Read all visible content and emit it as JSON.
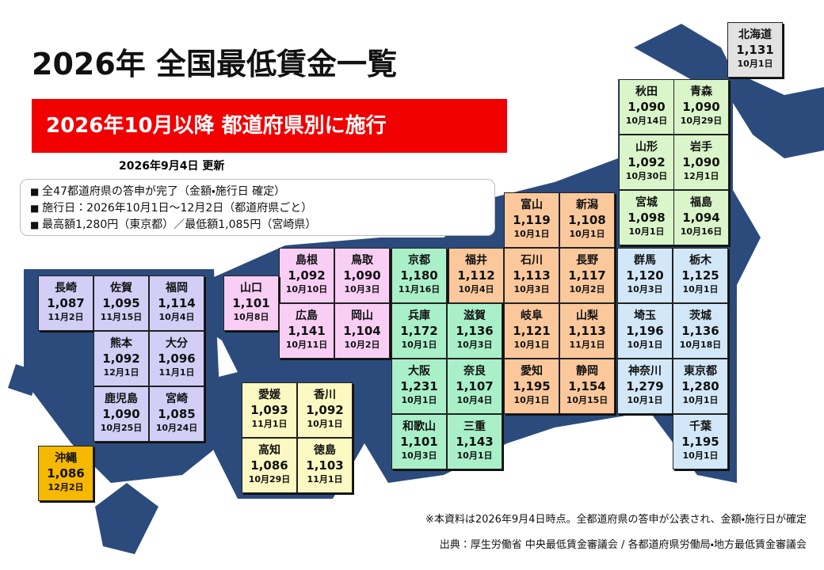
{
  "header": {
    "title": "2026年 全国最低賃金一覧",
    "banner": "2026年10月以降 都道府県別に施行",
    "updated": "2026年9月4日 更新"
  },
  "bullets": [
    "全47都道府県の答申が完了（金額・施行日 確定）",
    "施行日：2026年10月1日〜12月2日（都道府県ごと）",
    "最高額1,280円（東京都）／最低額1,085円（宮崎県）"
  ],
  "regions": [
    {
      "color": "#e2e2e2",
      "prefectures": [
        {
          "name": "北海道",
          "wage": "1,131",
          "date": "10月1日"
        }
      ]
    },
    {
      "color": "#daf5c9",
      "prefectures": [
        {
          "name": "秋田",
          "wage": "1,090",
          "date": "10月14日"
        },
        {
          "name": "青森",
          "wage": "1,090",
          "date": "10月29日"
        },
        {
          "name": "山形",
          "wage": "1,092",
          "date": "10月30日"
        },
        {
          "name": "岩手",
          "wage": "1,090",
          "date": "12月1日"
        },
        {
          "name": "宮城",
          "wage": "1,098",
          "date": "10月1日"
        },
        {
          "name": "福島",
          "wage": "1,094",
          "date": "10月16日"
        }
      ]
    },
    {
      "color": "#fbc89c",
      "prefectures": [
        {
          "name": "富山",
          "wage": "1,119",
          "date": "10月1日"
        },
        {
          "name": "新潟",
          "wage": "1,108",
          "date": "10月1日"
        },
        {
          "name": "福井",
          "wage": "1,112",
          "date": "10月4日"
        },
        {
          "name": "石川",
          "wage": "1,113",
          "date": "10月3日"
        },
        {
          "name": "長野",
          "wage": "1,117",
          "date": "10月2日"
        },
        {
          "name": "岐阜",
          "wage": "1,121",
          "date": "10月1日"
        },
        {
          "name": "山梨",
          "wage": "1,113",
          "date": "11月1日"
        },
        {
          "name": "愛知",
          "wage": "1,195",
          "date": "10月1日"
        },
        {
          "name": "静岡",
          "wage": "1,154",
          "date": "10月15日"
        }
      ]
    },
    {
      "color": "#d2e8f9",
      "prefectures": [
        {
          "name": "群馬",
          "wage": "1,120",
          "date": "10月3日"
        },
        {
          "name": "栃木",
          "wage": "1,125",
          "date": "10月1日"
        },
        {
          "name": "埼玉",
          "wage": "1,196",
          "date": "10月1日"
        },
        {
          "name": "茨城",
          "wage": "1,136",
          "date": "10月18日"
        },
        {
          "name": "神奈川",
          "wage": "1,279",
          "date": "10月1日"
        },
        {
          "name": "東京都",
          "wage": "1,280",
          "date": "10月1日"
        },
        {
          "name": "千葉",
          "wage": "1,195",
          "date": "10月1日"
        }
      ]
    },
    {
      "color": "#a9f0c9",
      "prefectures": [
        {
          "name": "京都",
          "wage": "1,180",
          "date": "11月16日"
        },
        {
          "name": "兵庫",
          "wage": "1,172",
          "date": "10月1日"
        },
        {
          "name": "滋賀",
          "wage": "1,136",
          "date": "10月3日"
        },
        {
          "name": "大阪",
          "wage": "1,231",
          "date": "10月1日"
        },
        {
          "name": "奈良",
          "wage": "1,107",
          "date": "10月4日"
        },
        {
          "name": "和歌山",
          "wage": "1,101",
          "date": "10月3日"
        },
        {
          "name": "三重",
          "wage": "1,143",
          "date": "10月1日"
        }
      ]
    },
    {
      "color": "#f9cef5",
      "prefectures": [
        {
          "name": "島根",
          "wage": "1,092",
          "date": "10月10日"
        },
        {
          "name": "鳥取",
          "wage": "1,090",
          "date": "10月3日"
        },
        {
          "name": "山口",
          "wage": "1,101",
          "date": "10月8日"
        },
        {
          "name": "広島",
          "wage": "1,141",
          "date": "10月11日"
        },
        {
          "name": "岡山",
          "wage": "1,104",
          "date": "10月2日"
        }
      ]
    },
    {
      "color": "#fbf8c2",
      "prefectures": [
        {
          "name": "愛媛",
          "wage": "1,093",
          "date": "11月1日"
        },
        {
          "name": "香川",
          "wage": "1,092",
          "date": "10月1日"
        },
        {
          "name": "高知",
          "wage": "1,086",
          "date": "10月29日"
        },
        {
          "name": "徳島",
          "wage": "1,103",
          "date": "11月1日"
        }
      ]
    },
    {
      "color": "#d2cef6",
      "prefectures": [
        {
          "name": "長崎",
          "wage": "1,087",
          "date": "11月2日"
        },
        {
          "name": "佐賀",
          "wage": "1,095",
          "date": "11月15日"
        },
        {
          "name": "福岡",
          "wage": "1,114",
          "date": "10月4日"
        },
        {
          "name": "熊本",
          "wage": "1,092",
          "date": "12月1日"
        },
        {
          "name": "大分",
          "wage": "1,096",
          "date": "11月1日"
        },
        {
          "name": "鹿児島",
          "wage": "1,090",
          "date": "10月25日"
        },
        {
          "name": "宮崎",
          "wage": "1,085",
          "date": "10月24日"
        }
      ]
    },
    {
      "color": "#f6b800",
      "prefectures": [
        {
          "name": "沖縄",
          "wage": "1,086",
          "date": "12月2日"
        }
      ]
    }
  ],
  "footnotes": [
    "※本資料は2026年9月4日時点。全都道府県の答申が公表され、金額・施行日が確定",
    "出典：厚生労働省 中央最低賃金審議会 / 各都道府県労働局・地方最低賃金審議会"
  ]
}
